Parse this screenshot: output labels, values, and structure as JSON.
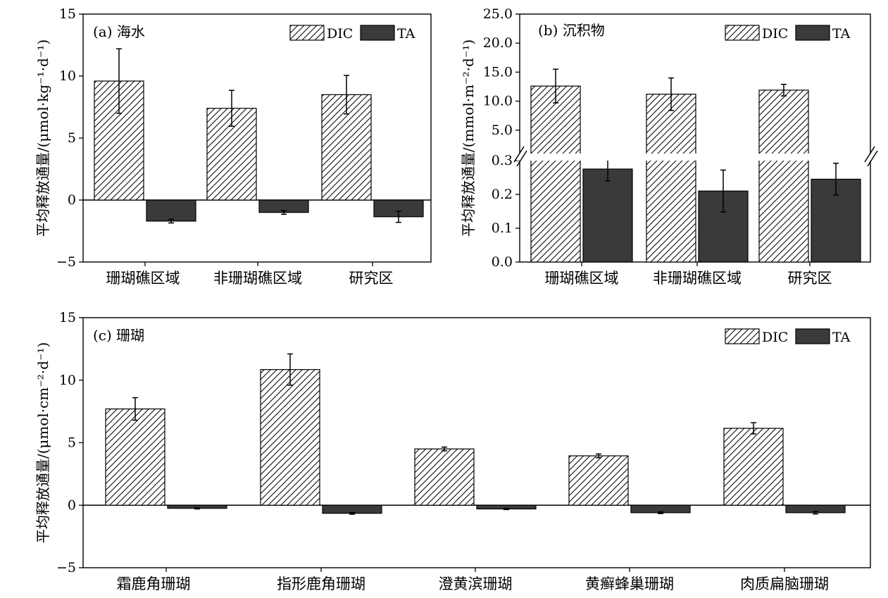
{
  "chart_data": [
    {
      "type": "bar",
      "title": "(a) 海水",
      "ylabel": "平均释放通量/(μmol·kg⁻¹·d⁻¹)",
      "categories": [
        "珊瑚礁区域",
        "非珊瑚礁区域",
        "研究区"
      ],
      "ylim": [
        -5,
        15
      ],
      "yticks": [
        "−5",
        "0",
        "5",
        "10",
        "15"
      ],
      "series": [
        {
          "name": "DIC",
          "values": [
            9.6,
            7.4,
            8.5
          ],
          "errors": [
            2.6,
            1.45,
            1.55
          ],
          "pattern": "hatch"
        },
        {
          "name": "TA",
          "values": [
            -1.7,
            -1.0,
            -1.35
          ],
          "errors": [
            0.15,
            0.15,
            0.45
          ],
          "color": "#3a3a3a"
        }
      ],
      "legend": "top-right",
      "grid": false
    },
    {
      "type": "bar",
      "title": "(b) 沉积物",
      "ylabel": "平均释放通量/(mmol·m⁻²·d⁻¹)",
      "categories": [
        "珊瑚礁区域",
        "非珊瑚礁区域",
        "研究区"
      ],
      "broken_axis": true,
      "ylim_upper": [
        0,
        25
      ],
      "ylim_lower": [
        0,
        0.3
      ],
      "yticks_upper": [
        "5.0",
        "10.0",
        "15.0",
        "20.0",
        "25.0"
      ],
      "yticks_lower": [
        "0.0",
        "0.1",
        "0.2",
        "0.3"
      ],
      "series": [
        {
          "name": "DIC",
          "values": [
            12.6,
            11.2,
            11.9
          ],
          "errors": [
            2.9,
            2.8,
            1.0
          ],
          "pattern": "hatch"
        },
        {
          "name": "TA",
          "values": [
            0.275,
            0.21,
            0.245
          ],
          "errors": [
            0.035,
            0.062,
            0.047
          ],
          "color": "#3a3a3a"
        }
      ],
      "legend": "top-right",
      "grid": false
    },
    {
      "type": "bar",
      "title": "(c) 珊瑚",
      "ylabel": "平均释放通量/(μmol·cm⁻²·d⁻¹)",
      "categories": [
        "霜鹿角珊瑚",
        "指形鹿角珊瑚",
        "澄黄滨珊瑚",
        "黄癣蜂巢珊瑚",
        "肉质扁脑珊瑚"
      ],
      "ylim": [
        -5,
        15
      ],
      "yticks": [
        "−5",
        "0",
        "5",
        "10",
        "15"
      ],
      "series": [
        {
          "name": "DIC",
          "values": [
            7.7,
            10.85,
            4.5,
            3.95,
            6.15
          ],
          "errors": [
            0.9,
            1.25,
            0.15,
            0.15,
            0.45
          ],
          "pattern": "hatch"
        },
        {
          "name": "TA",
          "values": [
            -0.25,
            -0.65,
            -0.3,
            -0.6,
            -0.6
          ],
          "errors": [
            0.05,
            0.07,
            0.05,
            0.07,
            0.1
          ],
          "color": "#3a3a3a"
        }
      ],
      "legend": "top-right",
      "grid": false
    }
  ]
}
